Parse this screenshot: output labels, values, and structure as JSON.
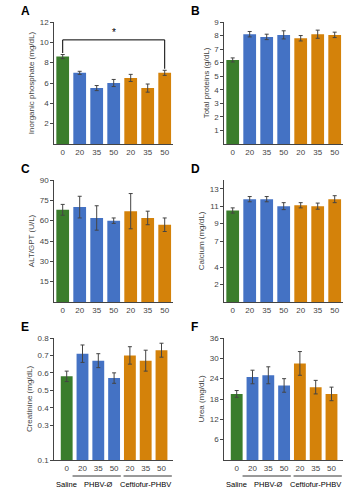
{
  "chart_data": [
    {
      "type": "bar",
      "title": "A",
      "ylabel": "Inorganic phosphate (mg/dL)",
      "categories": [
        "0",
        "20",
        "35",
        "50",
        "20",
        "35",
        "50"
      ],
      "values": [
        8.6,
        7.0,
        5.5,
        6.0,
        6.5,
        5.5,
        7.0
      ],
      "errors": [
        0.2,
        0.15,
        0.25,
        0.35,
        0.35,
        0.4,
        0.25
      ],
      "colors": [
        "#3a7d2c",
        "#4472c4",
        "#4472c4",
        "#4472c4",
        "#d4820a",
        "#d4820a",
        "#d4820a"
      ],
      "ylim": [
        0,
        12
      ],
      "yticks": [
        2,
        4,
        6,
        8,
        10,
        12
      ],
      "grid": false,
      "annotations": [
        {
          "text": "*",
          "span": [
            0,
            6
          ],
          "position": "above"
        }
      ]
    },
    {
      "type": "bar",
      "title": "B",
      "ylabel": "Total proteins (g/dL)",
      "categories": [
        "0",
        "20",
        "35",
        "50",
        "20",
        "35",
        "50"
      ],
      "values": [
        6.2,
        8.1,
        7.9,
        8.05,
        7.8,
        8.1,
        8.05
      ],
      "errors": [
        0.15,
        0.2,
        0.2,
        0.3,
        0.2,
        0.3,
        0.2
      ],
      "colors": [
        "#3a7d2c",
        "#4472c4",
        "#4472c4",
        "#4472c4",
        "#d4820a",
        "#d4820a",
        "#d4820a"
      ],
      "ylim": [
        0,
        9
      ],
      "yticks": [
        1,
        2,
        3,
        4,
        5,
        6,
        7,
        8,
        9
      ],
      "grid": false
    },
    {
      "type": "bar",
      "title": "C",
      "ylabel": "ALT/GPT (U/L)",
      "categories": [
        "0",
        "20",
        "35",
        "50",
        "20",
        "35",
        "50"
      ],
      "values": [
        68,
        70,
        62,
        60,
        67,
        62,
        57
      ],
      "errors": [
        4,
        8,
        9,
        2,
        13,
        5,
        5
      ],
      "colors": [
        "#3a7d2c",
        "#4472c4",
        "#4472c4",
        "#4472c4",
        "#d4820a",
        "#d4820a",
        "#d4820a"
      ],
      "ylim": [
        0,
        90
      ],
      "yticks": [
        15,
        30,
        45,
        60,
        75,
        90
      ],
      "grid": false
    },
    {
      "type": "bar",
      "title": "D",
      "ylabel": "Calcium (mg/dL)",
      "categories": [
        "0",
        "20",
        "35",
        "50",
        "20",
        "35",
        "50"
      ],
      "values": [
        10.5,
        11.8,
        11.8,
        11.0,
        11.1,
        11.0,
        11.8
      ],
      "errors": [
        0.3,
        0.3,
        0.3,
        0.4,
        0.3,
        0.35,
        0.4
      ],
      "colors": [
        "#3a7d2c",
        "#4472c4",
        "#4472c4",
        "#4472c4",
        "#d4820a",
        "#d4820a",
        "#d4820a"
      ],
      "ylim": [
        0,
        14
      ],
      "yticks": [
        2,
        4,
        7,
        9,
        11,
        13
      ],
      "grid": false
    },
    {
      "type": "bar",
      "title": "E",
      "ylabel": "Creatinine (mg/dL)",
      "categories": [
        "0",
        "20",
        "35",
        "50",
        "20",
        "35",
        "50"
      ],
      "values": [
        0.58,
        0.71,
        0.67,
        0.57,
        0.7,
        0.67,
        0.73
      ],
      "errors": [
        0.03,
        0.05,
        0.04,
        0.03,
        0.05,
        0.06,
        0.04
      ],
      "colors": [
        "#3a7d2c",
        "#4472c4",
        "#4472c4",
        "#4472c4",
        "#d4820a",
        "#d4820a",
        "#d4820a"
      ],
      "ylim": [
        0.1,
        0.8
      ],
      "yticks": [
        0.1,
        0.3,
        0.4,
        0.5,
        0.6,
        0.7,
        0.8
      ],
      "grid": false,
      "annotations": [
        {
          "text": "Saline",
          "span": [
            0,
            0
          ],
          "position": "below"
        },
        {
          "text": "PHBV-Ø",
          "span": [
            1,
            3
          ],
          "position": "below"
        },
        {
          "text": "Ceftiofur-PHBV",
          "span": [
            4,
            6
          ],
          "position": "below"
        }
      ]
    },
    {
      "type": "bar",
      "title": "F",
      "ylabel": "Urea (mg/dL)",
      "categories": [
        "0",
        "20",
        "35",
        "50",
        "20",
        "35",
        "50"
      ],
      "values": [
        19.5,
        24.5,
        25.0,
        22.0,
        28.5,
        21.5,
        19.5
      ],
      "errors": [
        1.0,
        2.0,
        2.5,
        2.0,
        3.5,
        2.0,
        2.0
      ],
      "colors": [
        "#3a7d2c",
        "#4472c4",
        "#4472c4",
        "#4472c4",
        "#d4820a",
        "#d4820a",
        "#d4820a"
      ],
      "ylim": [
        0,
        36
      ],
      "yticks": [
        6,
        12,
        18,
        24,
        30,
        36
      ],
      "grid": false,
      "annotations": [
        {
          "text": "Saline",
          "span": [
            0,
            0
          ],
          "position": "below"
        },
        {
          "text": "PHBV-Ø",
          "span": [
            1,
            3
          ],
          "position": "below"
        },
        {
          "text": "Ceftiofur-PHBV",
          "span": [
            4,
            6
          ],
          "position": "below"
        }
      ]
    }
  ]
}
